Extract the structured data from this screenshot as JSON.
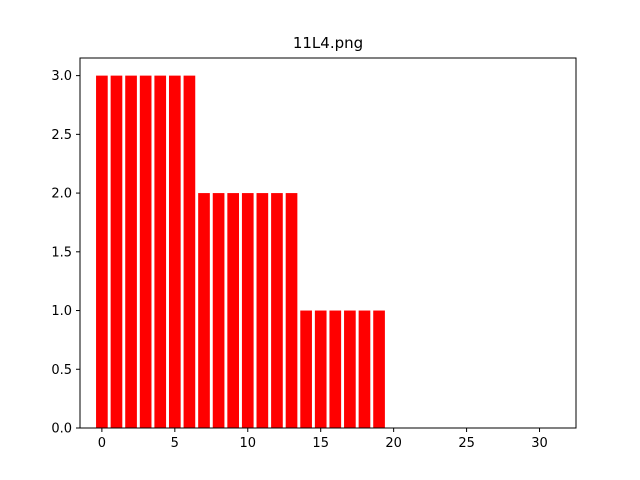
{
  "chart_data": {
    "type": "bar",
    "title": "11L4.png",
    "xlabel": "",
    "ylabel": "",
    "x": [
      0,
      1,
      2,
      3,
      4,
      5,
      6,
      7,
      8,
      9,
      10,
      11,
      12,
      13,
      14,
      15,
      16,
      17,
      18,
      19,
      20,
      21,
      22,
      23,
      24,
      25,
      26,
      27,
      28,
      29,
      30,
      31
    ],
    "values": [
      3,
      3,
      3,
      3,
      3,
      3,
      3,
      2,
      2,
      2,
      2,
      2,
      2,
      2,
      1,
      1,
      1,
      1,
      1,
      1,
      0,
      0,
      0,
      0,
      0,
      0,
      0,
      0,
      0,
      0,
      0,
      0
    ],
    "bar_color": "#ff0000",
    "xlim": [
      -1.5,
      32.5
    ],
    "ylim": [
      0,
      3.15
    ],
    "xticks": [
      0,
      5,
      10,
      15,
      20,
      25,
      30
    ],
    "xtick_labels": [
      "0",
      "5",
      "10",
      "15",
      "20",
      "25",
      "30"
    ],
    "yticks": [
      0,
      0.5,
      1.0,
      1.5,
      2.0,
      2.5,
      3.0
    ],
    "ytick_labels": [
      "0.0",
      "0.5",
      "1.0",
      "1.5",
      "2.0",
      "2.5",
      "3.0"
    ],
    "grid": false,
    "legend": "none"
  }
}
